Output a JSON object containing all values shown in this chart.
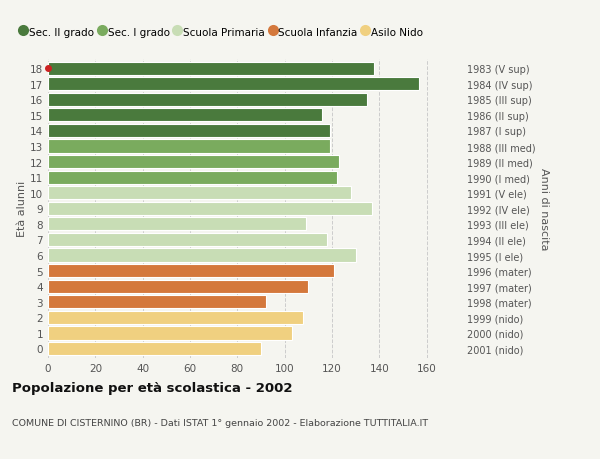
{
  "ages": [
    18,
    17,
    16,
    15,
    14,
    13,
    12,
    11,
    10,
    9,
    8,
    7,
    6,
    5,
    4,
    3,
    2,
    1,
    0
  ],
  "values": [
    138,
    157,
    135,
    116,
    119,
    119,
    123,
    122,
    128,
    137,
    109,
    118,
    130,
    121,
    110,
    92,
    108,
    103,
    90
  ],
  "right_labels": [
    "1983 (V sup)",
    "1984 (IV sup)",
    "1985 (III sup)",
    "1986 (II sup)",
    "1987 (I sup)",
    "1988 (III med)",
    "1989 (II med)",
    "1990 (I med)",
    "1991 (V ele)",
    "1992 (IV ele)",
    "1993 (III ele)",
    "1994 (II ele)",
    "1995 (I ele)",
    "1996 (mater)",
    "1997 (mater)",
    "1998 (mater)",
    "1999 (nido)",
    "2000 (nido)",
    "2001 (nido)"
  ],
  "colors": [
    "#4a7a3d",
    "#4a7a3d",
    "#4a7a3d",
    "#4a7a3d",
    "#4a7a3d",
    "#7aab5e",
    "#7aab5e",
    "#7aab5e",
    "#c8ddb5",
    "#c8ddb5",
    "#c8ddb5",
    "#c8ddb5",
    "#c8ddb5",
    "#d4783c",
    "#d4783c",
    "#d4783c",
    "#f0d080",
    "#f0d080",
    "#f0d080"
  ],
  "legend_labels": [
    "Sec. II grado",
    "Sec. I grado",
    "Scuola Primaria",
    "Scuola Infanzia",
    "Asilo Nido"
  ],
  "legend_colors": [
    "#4a7a3d",
    "#7aab5e",
    "#c8ddb5",
    "#d4783c",
    "#f0d080"
  ],
  "ylabel_left": "Età alunni",
  "ylabel_right": "Anni di nascita",
  "title": "Popolazione per età scolastica - 2002",
  "subtitle": "COMUNE DI CISTERNINO (BR) - Dati ISTAT 1° gennaio 2002 - Elaborazione TUTTITALIA.IT",
  "xlim": [
    0,
    175
  ],
  "xticks": [
    0,
    20,
    40,
    60,
    80,
    100,
    120,
    140,
    160
  ],
  "background_color": "#f5f5f0",
  "bar_edge_color": "white",
  "bar_height": 0.85,
  "dot_age": 18,
  "dot_color": "#cc2222"
}
